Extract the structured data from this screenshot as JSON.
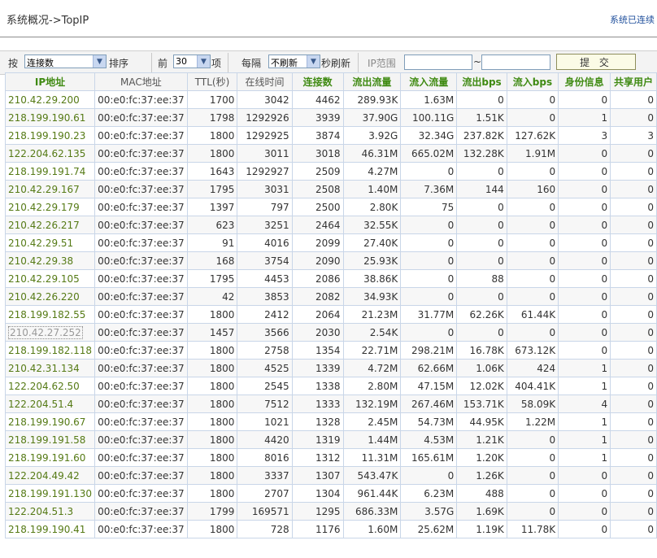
{
  "header": {
    "title": "系统概况->TopIP",
    "status_text": "系统已连续"
  },
  "toolbar": {
    "by_label": "按",
    "sort_field": "连接数",
    "sort_label": "排序",
    "top_label": "前",
    "top_count": "30",
    "items_label": "项",
    "every_label": "每隔",
    "refresh_value": "不刷新",
    "refresh_label": "秒刷新",
    "ip_range_label": "IP范围",
    "ip_from": "",
    "ip_sep": "~",
    "ip_to": "",
    "submit_label": "提 交"
  },
  "table": {
    "columns": [
      "IP地址",
      "MAC地址",
      "TTL(秒)",
      "在线时间",
      "连接数",
      "流出流量",
      "流入流量",
      "流出bps",
      "流入bps",
      "身份信息",
      "共享用户"
    ],
    "selected_row": 13,
    "rows": [
      [
        "210.42.29.200",
        "00:e0:fc:37:ee:37",
        "1700",
        "3042",
        "4462",
        "289.93K",
        "1.63M",
        "0",
        "0",
        "0",
        "0"
      ],
      [
        "218.199.190.61",
        "00:e0:fc:37:ee:37",
        "1798",
        "1292926",
        "3939",
        "37.90G",
        "100.11G",
        "1.51K",
        "0",
        "1",
        "0"
      ],
      [
        "218.199.190.23",
        "00:e0:fc:37:ee:37",
        "1800",
        "1292925",
        "3874",
        "3.92G",
        "32.34G",
        "237.82K",
        "127.62K",
        "3",
        "3"
      ],
      [
        "122.204.62.135",
        "00:e0:fc:37:ee:37",
        "1800",
        "3011",
        "3018",
        "46.31M",
        "665.02M",
        "132.28K",
        "1.91M",
        "0",
        "0"
      ],
      [
        "218.199.191.74",
        "00:e0:fc:37:ee:37",
        "1643",
        "1292927",
        "2509",
        "4.27M",
        "0",
        "0",
        "0",
        "0",
        "0"
      ],
      [
        "210.42.29.167",
        "00:e0:fc:37:ee:37",
        "1795",
        "3031",
        "2508",
        "1.40M",
        "7.36M",
        "144",
        "160",
        "0",
        "0"
      ],
      [
        "210.42.29.179",
        "00:e0:fc:37:ee:37",
        "1397",
        "797",
        "2500",
        "2.80K",
        "75",
        "0",
        "0",
        "0",
        "0"
      ],
      [
        "210.42.26.217",
        "00:e0:fc:37:ee:37",
        "623",
        "3251",
        "2464",
        "32.55K",
        "0",
        "0",
        "0",
        "0",
        "0"
      ],
      [
        "210.42.29.51",
        "00:e0:fc:37:ee:37",
        "91",
        "4016",
        "2099",
        "27.40K",
        "0",
        "0",
        "0",
        "0",
        "0"
      ],
      [
        "210.42.29.38",
        "00:e0:fc:37:ee:37",
        "168",
        "3754",
        "2090",
        "25.93K",
        "0",
        "0",
        "0",
        "0",
        "0"
      ],
      [
        "210.42.29.105",
        "00:e0:fc:37:ee:37",
        "1795",
        "4453",
        "2086",
        "38.86K",
        "0",
        "88",
        "0",
        "0",
        "0"
      ],
      [
        "210.42.26.220",
        "00:e0:fc:37:ee:37",
        "42",
        "3853",
        "2082",
        "34.93K",
        "0",
        "0",
        "0",
        "0",
        "0"
      ],
      [
        "218.199.182.55",
        "00:e0:fc:37:ee:37",
        "1800",
        "2412",
        "2064",
        "21.23M",
        "31.77M",
        "62.26K",
        "61.44K",
        "0",
        "0"
      ],
      [
        "210.42.27.252",
        "00:e0:fc:37:ee:37",
        "1457",
        "3566",
        "2030",
        "2.54K",
        "0",
        "0",
        "0",
        "0",
        "0"
      ],
      [
        "218.199.182.118",
        "00:e0:fc:37:ee:37",
        "1800",
        "2758",
        "1354",
        "22.71M",
        "298.21M",
        "16.78K",
        "673.12K",
        "0",
        "0"
      ],
      [
        "210.42.31.134",
        "00:e0:fc:37:ee:37",
        "1800",
        "4525",
        "1339",
        "4.72M",
        "62.66M",
        "1.06K",
        "424",
        "1",
        "0"
      ],
      [
        "122.204.62.50",
        "00:e0:fc:37:ee:37",
        "1800",
        "2545",
        "1338",
        "2.80M",
        "47.15M",
        "12.02K",
        "404.41K",
        "1",
        "0"
      ],
      [
        "122.204.51.4",
        "00:e0:fc:37:ee:37",
        "1800",
        "7512",
        "1333",
        "132.19M",
        "267.46M",
        "153.71K",
        "58.09K",
        "4",
        "0"
      ],
      [
        "218.199.190.67",
        "00:e0:fc:37:ee:37",
        "1800",
        "1021",
        "1328",
        "2.45M",
        "54.73M",
        "44.95K",
        "1.22M",
        "1",
        "0"
      ],
      [
        "218.199.191.58",
        "00:e0:fc:37:ee:37",
        "1800",
        "4420",
        "1319",
        "1.44M",
        "4.53M",
        "1.21K",
        "0",
        "1",
        "0"
      ],
      [
        "218.199.191.60",
        "00:e0:fc:37:ee:37",
        "1800",
        "8016",
        "1312",
        "11.31M",
        "165.61M",
        "1.20K",
        "0",
        "1",
        "0"
      ],
      [
        "122.204.49.42",
        "00:e0:fc:37:ee:37",
        "1800",
        "3337",
        "1307",
        "543.47K",
        "0",
        "1.26K",
        "0",
        "0",
        "0"
      ],
      [
        "218.199.191.130",
        "00:e0:fc:37:ee:37",
        "1800",
        "2707",
        "1304",
        "961.44K",
        "6.23M",
        "488",
        "0",
        "0",
        "0"
      ],
      [
        "122.204.51.3",
        "00:e0:fc:37:ee:37",
        "1799",
        "169571",
        "1295",
        "686.33M",
        "3.57G",
        "1.69K",
        "0",
        "0",
        "0"
      ],
      [
        "218.199.190.41",
        "00:e0:fc:37:ee:37",
        "1800",
        "728",
        "1176",
        "1.60M",
        "25.62M",
        "1.19K",
        "11.78K",
        "0",
        "0"
      ]
    ]
  }
}
